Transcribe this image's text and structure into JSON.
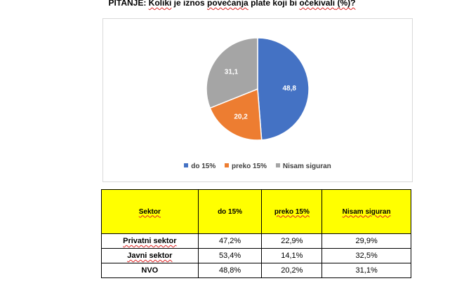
{
  "title": {
    "prefix": "PITANJE: ",
    "word1": "Koliki",
    "mid": " je iznos ",
    "word2": "povećanja",
    "mid2": " plate koji bi ",
    "word3": "očekivali",
    "suffix": " (%)?"
  },
  "colors": {
    "do_15": "#4472c4",
    "preko_15": "#ed7d31",
    "nisam_siguran": "#a5a5a5"
  },
  "chart_data": {
    "type": "pie",
    "title": "",
    "categories": [
      "do 15%",
      "preko 15%",
      "Nisam siguran"
    ],
    "values": [
      48.8,
      20.2,
      31.1
    ],
    "labels": [
      "48,8",
      "20,2",
      "31,1"
    ],
    "legend_position": "bottom"
  },
  "table": {
    "headers": [
      "Sektor",
      "do 15%",
      "preko 15%",
      "Nisam siguran"
    ],
    "rows": [
      [
        "Privatni sektor",
        "47,2%",
        "22,9%",
        "29,9%"
      ],
      [
        "Javni sektor",
        "53,4%",
        "14,1%",
        "32,5%"
      ],
      [
        "NVO",
        "48,8%",
        "20,2%",
        "31,1%"
      ]
    ]
  }
}
